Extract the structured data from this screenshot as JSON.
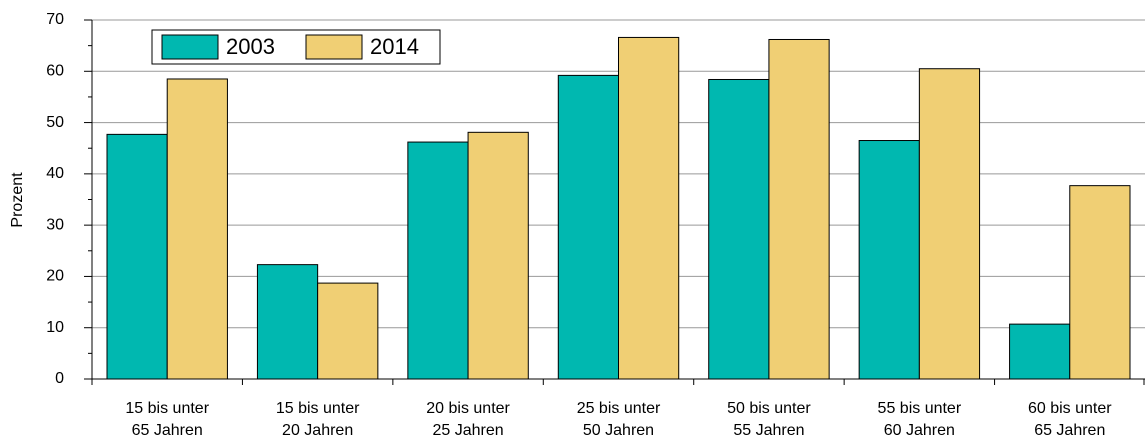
{
  "chart_data": {
    "type": "bar",
    "ylabel": "Prozent",
    "categories": [
      [
        "15 bis unter",
        "65 Jahren"
      ],
      [
        "15 bis unter",
        "20 Jahren"
      ],
      [
        "20 bis unter",
        "25 Jahren"
      ],
      [
        "25 bis unter",
        "50 Jahren"
      ],
      [
        "50 bis unter",
        "55 Jahren"
      ],
      [
        "55 bis unter",
        "60 Jahren"
      ],
      [
        "60 bis unter",
        "65 Jahren"
      ]
    ],
    "series": [
      {
        "name": "2003",
        "color": "#00b8b0",
        "values": [
          47.7,
          22.3,
          46.2,
          59.2,
          58.4,
          46.5,
          10.7
        ]
      },
      {
        "name": "2014",
        "color": "#f0cf74",
        "values": [
          58.5,
          18.7,
          48.1,
          66.6,
          66.2,
          60.5,
          37.7
        ]
      }
    ],
    "ylim": [
      0,
      70
    ],
    "yticks": [
      0,
      10,
      20,
      30,
      40,
      50,
      60,
      70
    ],
    "grid": true,
    "legend": "top-left"
  }
}
